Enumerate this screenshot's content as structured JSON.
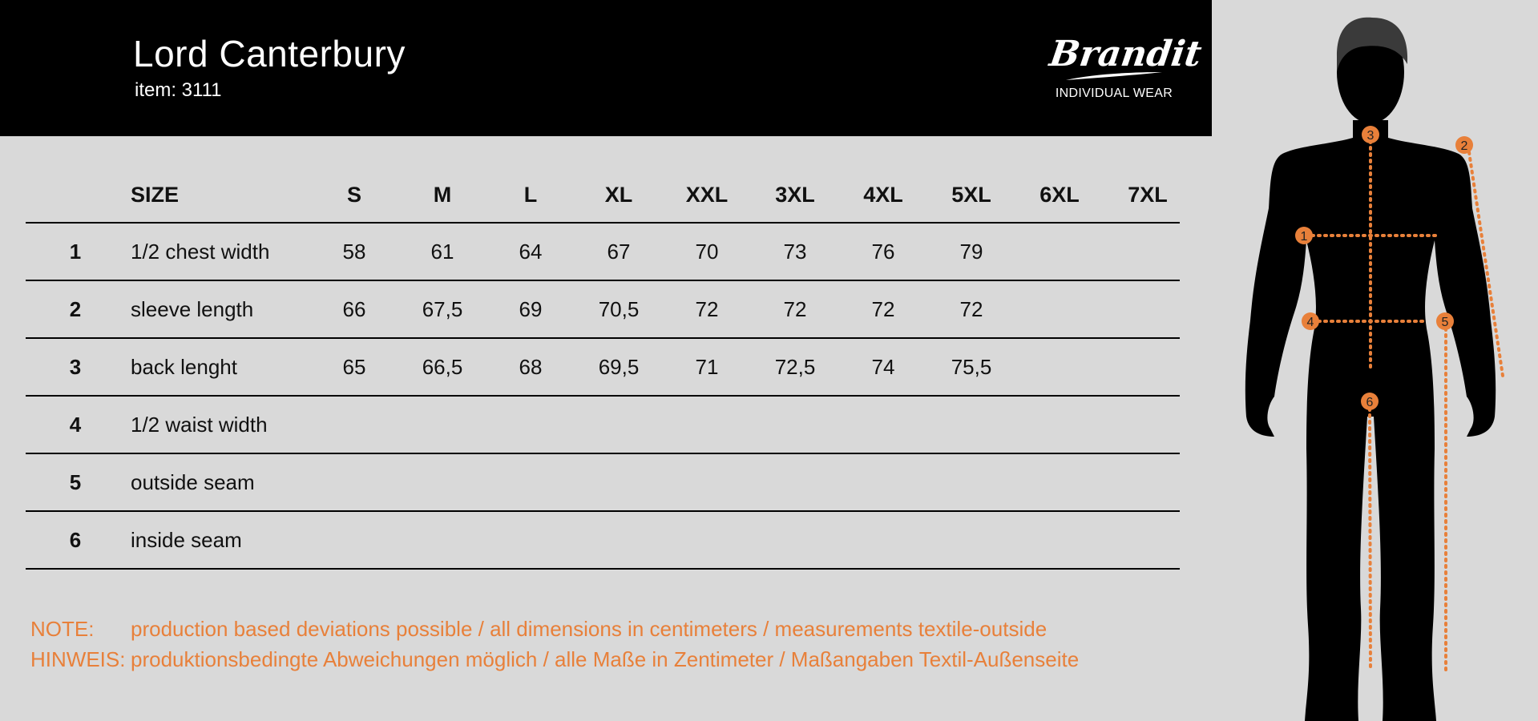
{
  "header": {
    "title": "Lord Canterbury",
    "item": "item: 3111"
  },
  "logo": {
    "brand": "Brandit",
    "tagline": "INDIVIDUAL WEAR"
  },
  "table": {
    "size_label": "SIZE",
    "sizes": [
      "S",
      "M",
      "L",
      "XL",
      "XXL",
      "3XL",
      "4XL",
      "5XL",
      "6XL",
      "7XL"
    ],
    "rows": [
      {
        "num": "1",
        "label": "1/2 chest width",
        "values": [
          "58",
          "61",
          "64",
          "67",
          "70",
          "73",
          "76",
          "79",
          "",
          ""
        ]
      },
      {
        "num": "2",
        "label": "sleeve length",
        "values": [
          "66",
          "67,5",
          "69",
          "70,5",
          "72",
          "72",
          "72",
          "72",
          "",
          ""
        ]
      },
      {
        "num": "3",
        "label": "back lenght",
        "values": [
          "65",
          "66,5",
          "68",
          "69,5",
          "71",
          "72,5",
          "74",
          "75,5",
          "",
          ""
        ]
      },
      {
        "num": "4",
        "label": "1/2 waist width",
        "values": [
          "",
          "",
          "",
          "",
          "",
          "",
          "",
          "",
          "",
          ""
        ]
      },
      {
        "num": "5",
        "label": "outside seam",
        "values": [
          "",
          "",
          "",
          "",
          "",
          "",
          "",
          "",
          "",
          ""
        ]
      },
      {
        "num": "6",
        "label": "inside seam",
        "values": [
          "",
          "",
          "",
          "",
          "",
          "",
          "",
          "",
          "",
          ""
        ]
      }
    ]
  },
  "notes": [
    {
      "key": "NOTE:",
      "text": "production based deviations possible / all dimensions in centimeters / measurements textile-outside"
    },
    {
      "key": "HINWEIS:",
      "text": "produktionsbedingte Abweichungen möglich / alle Maße in Zentimeter / Maßangaben Textil-Außenseite"
    }
  ],
  "figure": {
    "markers": [
      "1",
      "2",
      "3",
      "4",
      "5",
      "6"
    ],
    "accent_color": "#e8803a"
  }
}
